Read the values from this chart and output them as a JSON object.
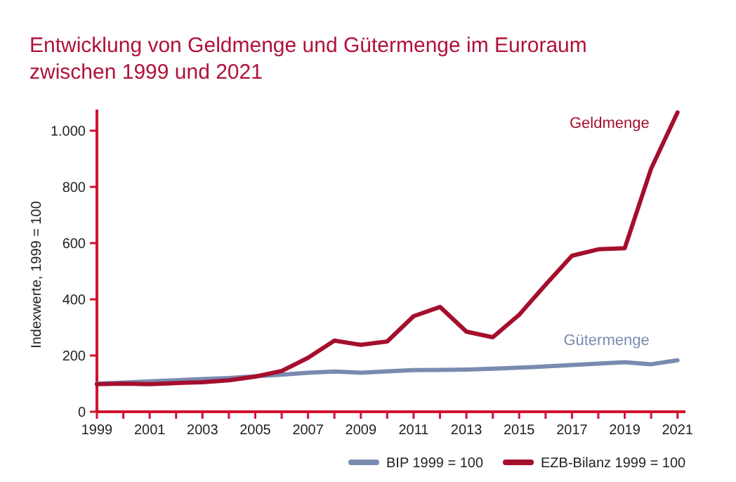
{
  "chart_data": {
    "type": "line",
    "title": "Entwicklung von Geldmenge und Gütermenge im Euroraum zwischen 1999 und 2021",
    "ylabel": "Indexwerte, 1999 = 100",
    "x": [
      1999,
      2000,
      2001,
      2002,
      2003,
      2004,
      2005,
      2006,
      2007,
      2008,
      2009,
      2010,
      2011,
      2012,
      2013,
      2014,
      2015,
      2016,
      2017,
      2018,
      2019,
      2020,
      2021
    ],
    "series": [
      {
        "name": "BIP 1999 = 100",
        "color": "#7a8bb0",
        "values": [
          100,
          104,
          108,
          112,
          116,
          120,
          126,
          132,
          139,
          143,
          139,
          144,
          148,
          149,
          150,
          153,
          157,
          161,
          166,
          171,
          176,
          169,
          183
        ]
      },
      {
        "name": "EZB-Bilanz 1999 = 100",
        "color": "#a50f2d",
        "values": [
          98,
          100,
          98,
          102,
          105,
          112,
          125,
          145,
          192,
          253,
          238,
          250,
          340,
          373,
          285,
          265,
          345,
          452,
          555,
          578,
          582,
          865,
          1065
        ]
      }
    ],
    "xlim": [
      1999,
      2021.3
    ],
    "ylim": [
      0,
      1075
    ],
    "xticks": [
      1999,
      {
        "value": 2000,
        "label": null
      },
      2001,
      {
        "value": 2002,
        "label": null
      },
      2003,
      {
        "value": 2004,
        "label": null
      },
      2005,
      {
        "value": 2006,
        "label": null
      },
      2007,
      {
        "value": 2008,
        "label": null
      },
      2009,
      {
        "value": 2010,
        "label": null
      },
      2011,
      {
        "value": 2012,
        "label": null
      },
      2013,
      {
        "value": 2014,
        "label": null
      },
      2015,
      {
        "value": 2016,
        "label": null
      },
      2017,
      {
        "value": 2018,
        "label": null
      },
      2019,
      {
        "value": 2020,
        "label": null
      },
      2021
    ],
    "yticks": [
      0,
      200,
      400,
      600,
      800,
      {
        "value": 1000,
        "label": "1.000"
      }
    ],
    "annotations": [
      "Gütermenge",
      "Geldmenge"
    ],
    "grid": false,
    "legend": "bottom right",
    "line_style": "solid"
  }
}
